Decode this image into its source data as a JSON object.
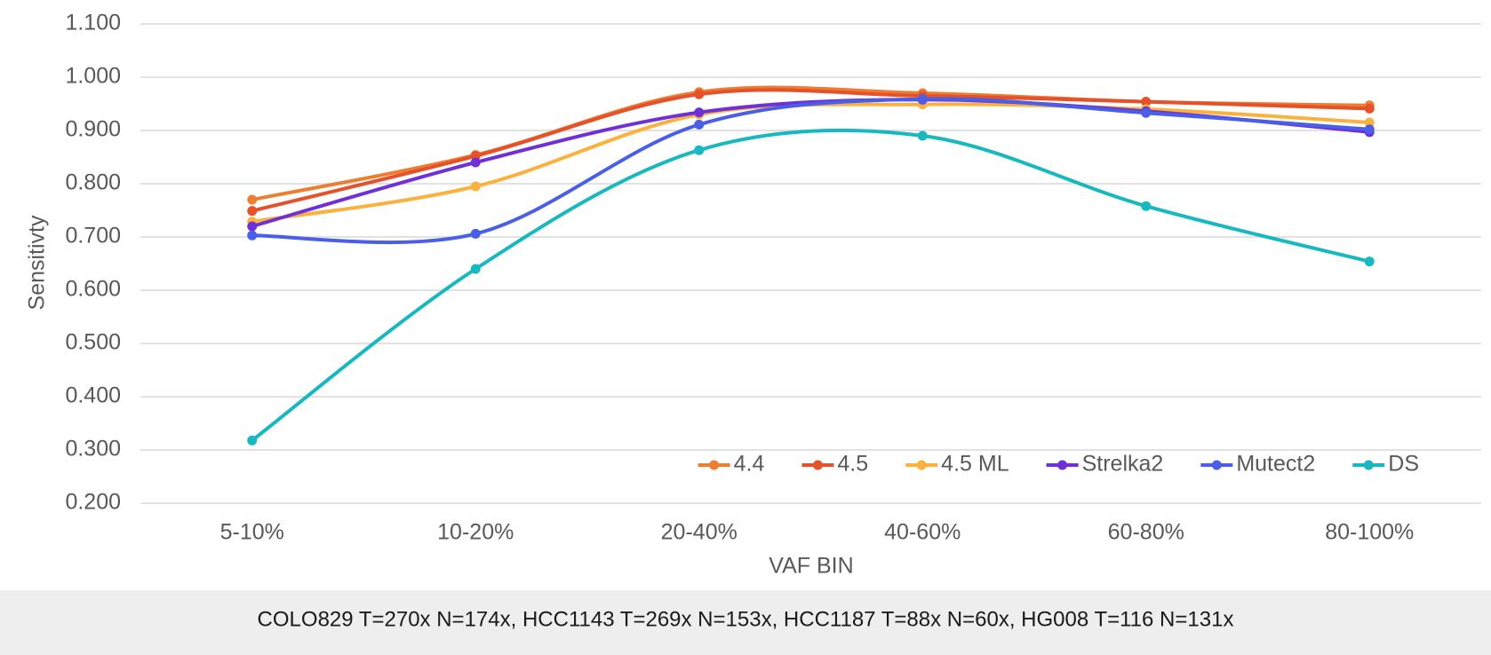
{
  "chart_data": {
    "type": "line",
    "y_label": "Sensitivty",
    "x_label": "VAF BIN",
    "footnote": "COLO829 T=270x N=174x, HCC1143 T=269x N=153x, HCC1187 T=88x N=60x, HG008 T=116 N=131x",
    "categories": [
      "5-10%",
      "10-20%",
      "20-40%",
      "40-60%",
      "60-80%",
      "80-100%"
    ],
    "series": [
      {
        "name": "4.4",
        "color": "#ed7d31",
        "values": [
          0.77,
          0.854,
          0.972,
          0.97,
          0.954,
          0.947
        ]
      },
      {
        "name": "4.5",
        "color": "#e5512a",
        "values": [
          0.749,
          0.852,
          0.968,
          0.965,
          0.954,
          0.941
        ]
      },
      {
        "name": "4.5 ML",
        "color": "#fbb13c",
        "values": [
          0.729,
          0.795,
          0.93,
          0.949,
          0.94,
          0.915
        ]
      },
      {
        "name": "Strelka2",
        "color": "#7030d8",
        "values": [
          0.72,
          0.84,
          0.934,
          0.958,
          0.936,
          0.897
        ]
      },
      {
        "name": "Mutect2",
        "color": "#4a5fe8",
        "values": [
          0.703,
          0.706,
          0.911,
          0.959,
          0.933,
          0.902
        ]
      },
      {
        "name": "DS",
        "color": "#17b8bf",
        "values": [
          0.318,
          0.64,
          0.863,
          0.89,
          0.758,
          0.654
        ]
      }
    ],
    "ylim": [
      0.2,
      1.1
    ],
    "yticks": [
      {
        "value": 0.2,
        "label": "0.200"
      },
      {
        "value": 0.3,
        "label": "0.300"
      },
      {
        "value": 0.4,
        "label": "0.400"
      },
      {
        "value": 0.5,
        "label": "0.500"
      },
      {
        "value": 0.6,
        "label": "0.600"
      },
      {
        "value": 0.7,
        "label": "0.700"
      },
      {
        "value": 0.8,
        "label": "0.800"
      },
      {
        "value": 0.9,
        "label": "0.900"
      },
      {
        "value": 1.0,
        "label": "1.000"
      },
      {
        "value": 1.1,
        "label": "1.100"
      }
    ],
    "grid": true,
    "smooth": true,
    "legend": "lower right"
  }
}
